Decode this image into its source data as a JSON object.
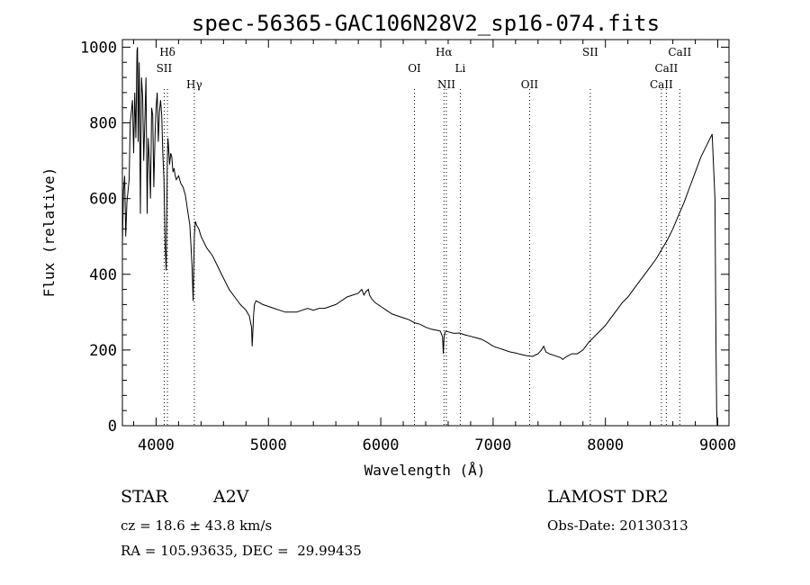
{
  "chart_data": {
    "type": "line",
    "title": "spec-56365-GAC106N28V2_sp16-074.fits",
    "xlabel": "Wavelength (Å)",
    "ylabel": "Flux (relative)",
    "xlim": [
      3700,
      9100
    ],
    "ylim": [
      0,
      1020
    ],
    "xticks": [
      4000,
      5000,
      6000,
      7000,
      8000,
      9000
    ],
    "yticks": [
      0,
      200,
      400,
      600,
      800,
      1000
    ],
    "grid": false,
    "line_color": "#000000",
    "series": [
      {
        "x": [
          3700,
          3710,
          3720,
          3730,
          3740,
          3760,
          3770,
          3790,
          3800,
          3810,
          3820,
          3830,
          3835,
          3840,
          3850,
          3860,
          3870,
          3880,
          3890,
          3900,
          3910,
          3920,
          3930,
          3940,
          3950,
          3960,
          3970,
          3980,
          3990,
          4000,
          4010,
          4020,
          4030,
          4040,
          4050,
          4060,
          4070,
          4080,
          4090,
          4095,
          4100,
          4105,
          4110,
          4120,
          4130,
          4140,
          4150,
          4160,
          4170,
          4180,
          4200,
          4220,
          4240,
          4260,
          4280,
          4300,
          4310,
          4320,
          4330,
          4335,
          4340,
          4345,
          4350,
          4360,
          4380,
          4400,
          4450,
          4500,
          4550,
          4600,
          4650,
          4700,
          4750,
          4800,
          4830,
          4850,
          4855,
          4861,
          4867,
          4875,
          4890,
          4920,
          4950,
          5000,
          5050,
          5100,
          5150,
          5200,
          5250,
          5300,
          5350,
          5400,
          5450,
          5500,
          5550,
          5600,
          5650,
          5700,
          5750,
          5800,
          5830,
          5850,
          5870,
          5890,
          5900,
          5920,
          5950,
          6000,
          6050,
          6100,
          6150,
          6200,
          6250,
          6300,
          6350,
          6400,
          6450,
          6500,
          6530,
          6550,
          6557,
          6563,
          6570,
          6580,
          6600,
          6650,
          6700,
          6750,
          6800,
          6850,
          6900,
          6950,
          7000,
          7050,
          7100,
          7150,
          7200,
          7250,
          7300,
          7350,
          7400,
          7430,
          7450,
          7470,
          7500,
          7550,
          7600,
          7620,
          7650,
          7700,
          7750,
          7800,
          7850,
          7900,
          7950,
          8000,
          8050,
          8100,
          8150,
          8200,
          8250,
          8300,
          8350,
          8400,
          8450,
          8500,
          8550,
          8600,
          8650,
          8700,
          8750,
          8800,
          8850,
          8900,
          8950,
          8975,
          8985,
          8990,
          8993,
          8995
        ],
        "y": [
          480,
          620,
          660,
          500,
          590,
          650,
          800,
          860,
          720,
          880,
          760,
          990,
          1000,
          750,
          960,
          560,
          920,
          870,
          700,
          810,
          920,
          560,
          760,
          700,
          600,
          840,
          820,
          630,
          760,
          840,
          880,
          750,
          830,
          860,
          820,
          720,
          650,
          480,
          410,
          560,
          700,
          760,
          740,
          690,
          720,
          710,
          670,
          680,
          660,
          650,
          660,
          640,
          630,
          610,
          570,
          530,
          480,
          420,
          330,
          420,
          500,
          520,
          540,
          530,
          520,
          500,
          470,
          450,
          420,
          390,
          360,
          340,
          320,
          305,
          290,
          260,
          210,
          245,
          290,
          320,
          330,
          325,
          320,
          315,
          310,
          305,
          300,
          300,
          300,
          305,
          310,
          305,
          310,
          310,
          315,
          320,
          330,
          340,
          345,
          350,
          360,
          345,
          355,
          360,
          345,
          335,
          325,
          315,
          305,
          295,
          290,
          285,
          280,
          272,
          268,
          260,
          255,
          252,
          250,
          235,
          190,
          230,
          245,
          250,
          248,
          244,
          245,
          240,
          236,
          232,
          228,
          220,
          210,
          205,
          200,
          195,
          192,
          188,
          185,
          183,
          190,
          200,
          210,
          195,
          190,
          185,
          180,
          175,
          182,
          190,
          190,
          200,
          220,
          235,
          250,
          265,
          285,
          305,
          325,
          340,
          360,
          380,
          400,
          420,
          440,
          465,
          490,
          520,
          555,
          590,
          630,
          670,
          710,
          740,
          770,
          600,
          200,
          40,
          20,
          0
        ]
      }
    ],
    "annotations": [
      {
        "label": "Hδ",
        "x": 4101
      },
      {
        "label": "SII",
        "x": 4072
      },
      {
        "label": "Hγ",
        "x": 4340
      },
      {
        "label": "OI",
        "x": 6300
      },
      {
        "label": "Hα",
        "x": 6563
      },
      {
        "label": "NII",
        "x": 6584
      },
      {
        "label": "Li",
        "x": 6708
      },
      {
        "label": "OII",
        "x": 7325
      },
      {
        "label": "SII",
        "x": 7865
      },
      {
        "label": "CaII",
        "x": 8498
      },
      {
        "label": "CaII",
        "x": 8542
      },
      {
        "label": "CaII",
        "x": 8662
      }
    ]
  },
  "info": {
    "object_class": "STAR",
    "subclass": "A2V",
    "survey": "LAMOST DR2",
    "redshift_line": "cz = 18.6 ± 43.8 km/s",
    "obs_date_line": "Obs-Date: 20130313",
    "coords_line": "RA = 105.93635, DEC =  29.99435"
  }
}
